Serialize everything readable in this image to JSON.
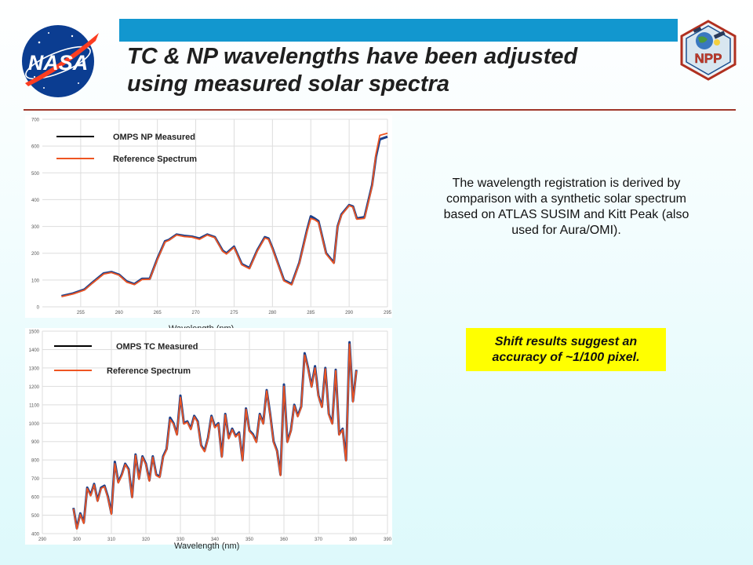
{
  "slide": {
    "title_line1": "TC & NP wavelengths have been adjusted",
    "title_line2": "using measured solar spectra",
    "description": "The wavelength registration is derived by comparison with a synthetic solar spectrum based on ATLAS SUSIM and Kitt Peak (also used for Aura/OMI).",
    "callout": "Shift results suggest an accuracy of ~1/100 pixel.",
    "logo_left_text": "NASA",
    "logo_right_text": "NPP",
    "colors": {
      "title_bar": "#1297cf",
      "divider": "#a0372a",
      "callout_bg": "#ffff00"
    }
  },
  "chart_data": [
    {
      "type": "line",
      "xlabel": "Wavelength (nm)",
      "ylabel": "",
      "xlim": [
        250,
        295
      ],
      "ylim": [
        0,
        700
      ],
      "xticks": [
        255,
        260,
        265,
        270,
        275,
        280,
        285,
        290,
        295
      ],
      "yticks": [
        0,
        100,
        200,
        300,
        400,
        500,
        600,
        700
      ],
      "grid": true,
      "legend_position": "top-left",
      "series": [
        {
          "name": "OMPS  NP Measured",
          "color": "#1a3f8a",
          "x": [
            252.5,
            254,
            255.5,
            256.5,
            258,
            259,
            260,
            261,
            262,
            263,
            264,
            265,
            266,
            266.5,
            267.5,
            268.5,
            269.5,
            270.5,
            271.5,
            272.5,
            273.5,
            274,
            275,
            276,
            277,
            278,
            279,
            279.5,
            280,
            280.5,
            281.5,
            282.5,
            283.5,
            284.5,
            285,
            285.5,
            286,
            287,
            288,
            288.5,
            289,
            290,
            290.5,
            291,
            292,
            293,
            293.5,
            294,
            295
          ],
          "y": [
            40,
            50,
            65,
            90,
            125,
            130,
            120,
            95,
            85,
            105,
            105,
            180,
            245,
            250,
            270,
            265,
            262,
            255,
            270,
            260,
            210,
            200,
            225,
            160,
            145,
            210,
            260,
            255,
            220,
            180,
            100,
            85,
            165,
            285,
            338,
            330,
            320,
            200,
            165,
            300,
            345,
            380,
            375,
            330,
            335,
            455,
            560,
            625,
            635
          ]
        },
        {
          "name": "Reference Spectrum",
          "color": "#ee5522",
          "x": [
            252.5,
            254,
            255.5,
            256.5,
            258,
            259,
            260,
            261,
            262,
            263,
            264,
            265,
            266,
            266.5,
            267.5,
            268.5,
            269.5,
            270.5,
            271.5,
            272.5,
            273.5,
            274,
            275,
            276,
            277,
            278,
            279,
            279.5,
            280,
            280.5,
            281.5,
            282.5,
            283.5,
            284.5,
            285,
            285.5,
            286,
            287,
            288,
            288.5,
            289,
            290,
            290.5,
            291,
            292,
            293,
            293.5,
            294,
            295
          ],
          "y": [
            38,
            48,
            63,
            88,
            122,
            128,
            118,
            92,
            83,
            102,
            103,
            177,
            242,
            248,
            268,
            262,
            260,
            252,
            268,
            258,
            207,
            197,
            222,
            157,
            142,
            207,
            257,
            252,
            217,
            177,
            97,
            82,
            162,
            280,
            330,
            325,
            315,
            197,
            162,
            298,
            342,
            378,
            372,
            327,
            330,
            450,
            570,
            640,
            648
          ]
        }
      ]
    },
    {
      "type": "line",
      "xlabel": "Wavelength (nm)",
      "ylabel": "",
      "xlim": [
        290,
        390
      ],
      "ylim": [
        400,
        1500
      ],
      "xticks": [
        290,
        300,
        310,
        320,
        330,
        340,
        350,
        360,
        370,
        380,
        390
      ],
      "yticks": [
        400,
        500,
        600,
        700,
        800,
        900,
        1000,
        1100,
        1200,
        1300,
        1400,
        1500
      ],
      "grid": true,
      "legend_position": "top-left",
      "series": [
        {
          "name": "OMPS TC Measured",
          "color": "#1a3f8a",
          "x": [
            299,
            300,
            301,
            302,
            303,
            304,
            305,
            306,
            307,
            308,
            309,
            310,
            311,
            312,
            313,
            314,
            315,
            316,
            317,
            318,
            319,
            320,
            321,
            322,
            323,
            324,
            325,
            326,
            327,
            328,
            329,
            330,
            331,
            332,
            333,
            334,
            335,
            336,
            337,
            338,
            339,
            340,
            341,
            342,
            343,
            344,
            345,
            346,
            347,
            348,
            349,
            350,
            351,
            352,
            353,
            354,
            355,
            356,
            357,
            358,
            359,
            360,
            361,
            362,
            363,
            364,
            365,
            366,
            367,
            368,
            369,
            370,
            371,
            372,
            373,
            374,
            375,
            376,
            377,
            378,
            379,
            380,
            381
          ],
          "y": [
            540,
            430,
            510,
            460,
            650,
            610,
            670,
            580,
            650,
            660,
            600,
            510,
            790,
            680,
            720,
            780,
            750,
            600,
            830,
            700,
            820,
            780,
            690,
            820,
            720,
            710,
            820,
            860,
            1030,
            1000,
            940,
            1150,
            1000,
            1010,
            970,
            1040,
            1010,
            880,
            850,
            920,
            1040,
            980,
            1000,
            820,
            1050,
            920,
            970,
            930,
            950,
            800,
            1080,
            960,
            940,
            900,
            1050,
            1000,
            1180,
            1050,
            900,
            850,
            720,
            1210,
            900,
            960,
            1100,
            1040,
            1090,
            1380,
            1300,
            1200,
            1310,
            1150,
            1090,
            1300,
            1050,
            1000,
            1290,
            940,
            970,
            800,
            1440,
            1120,
            1290
          ]
        },
        {
          "name": "Reference Spectrum",
          "color": "#ee5522",
          "x": [
            299,
            300,
            301,
            302,
            303,
            304,
            305,
            306,
            307,
            308,
            309,
            310,
            311,
            312,
            313,
            314,
            315,
            316,
            317,
            318,
            319,
            320,
            321,
            322,
            323,
            324,
            325,
            326,
            327,
            328,
            329,
            330,
            331,
            332,
            333,
            334,
            335,
            336,
            337,
            338,
            339,
            340,
            341,
            342,
            343,
            344,
            345,
            346,
            347,
            348,
            349,
            350,
            351,
            352,
            353,
            354,
            355,
            356,
            357,
            358,
            359,
            360,
            361,
            362,
            363,
            364,
            365,
            366,
            367,
            368,
            369,
            370,
            371,
            372,
            373,
            374,
            375,
            376,
            377,
            378,
            379,
            380,
            381
          ],
          "y": [
            535,
            425,
            505,
            455,
            645,
            605,
            665,
            575,
            645,
            655,
            595,
            505,
            780,
            675,
            715,
            775,
            745,
            595,
            825,
            695,
            815,
            775,
            685,
            815,
            715,
            705,
            815,
            855,
            1020,
            995,
            935,
            1140,
            995,
            1005,
            965,
            1035,
            1005,
            875,
            845,
            915,
            1035,
            975,
            995,
            815,
            1045,
            915,
            965,
            925,
            945,
            795,
            1075,
            955,
            935,
            895,
            1045,
            995,
            1175,
            1045,
            895,
            845,
            715,
            1200,
            895,
            955,
            1095,
            1035,
            1085,
            1370,
            1295,
            1195,
            1300,
            1145,
            1085,
            1295,
            1045,
            995,
            1285,
            935,
            965,
            795,
            1430,
            1115,
            1285
          ]
        }
      ]
    }
  ]
}
